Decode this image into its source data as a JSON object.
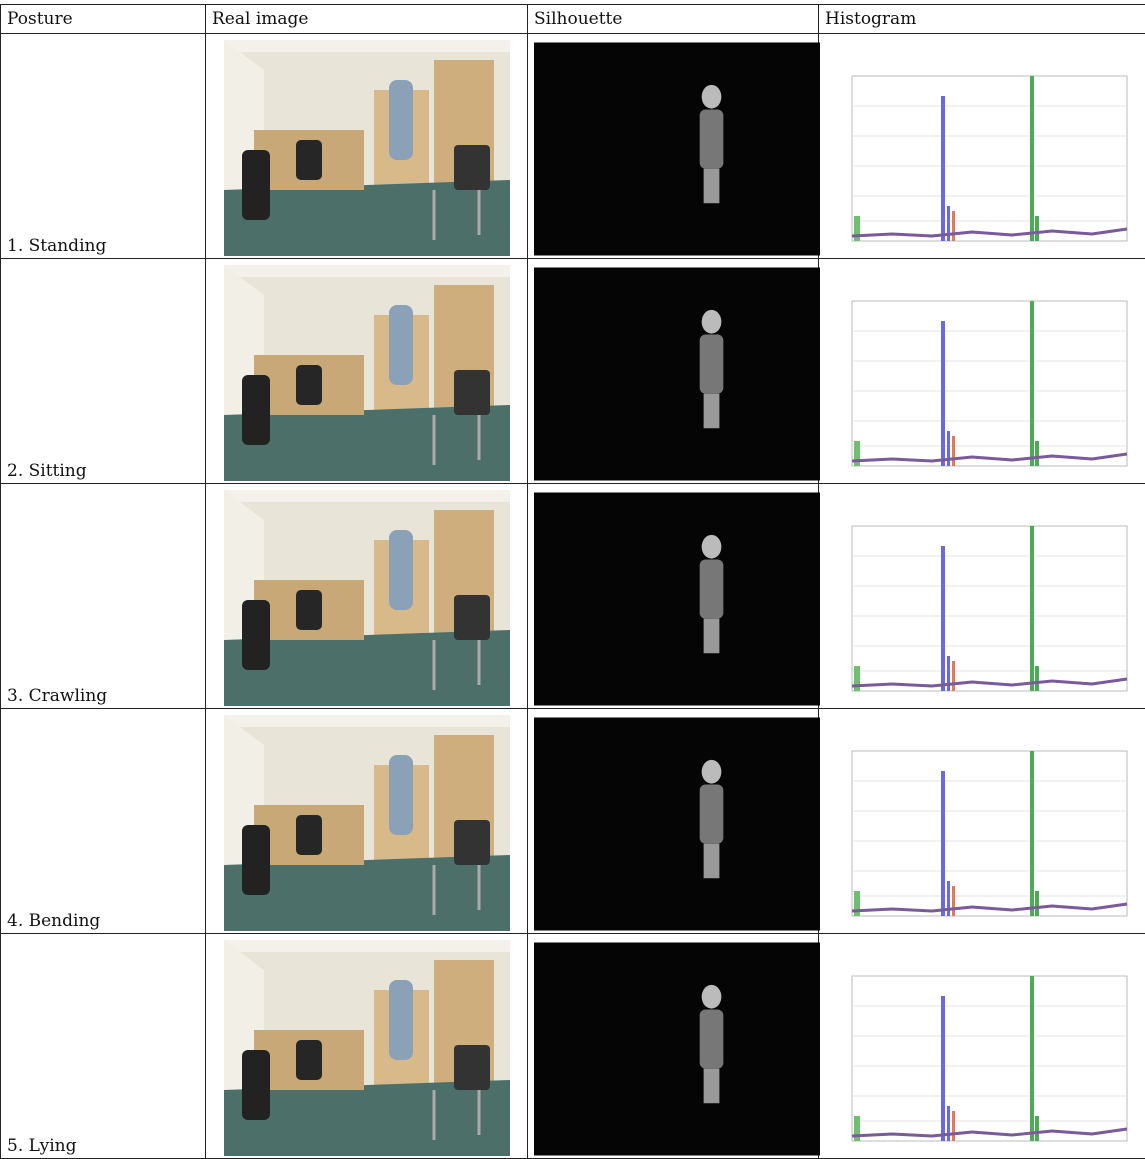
{
  "table": {
    "header": [
      "Posture",
      "Real image",
      "Silhouette",
      "Histogram"
    ],
    "rows": [
      [
        "1. Standing"
      ],
      [
        "2. Sitting"
      ],
      [
        "3. Crawling"
      ],
      [
        "4. Bending"
      ],
      [
        "5. Lying"
      ]
    ]
  }
}
